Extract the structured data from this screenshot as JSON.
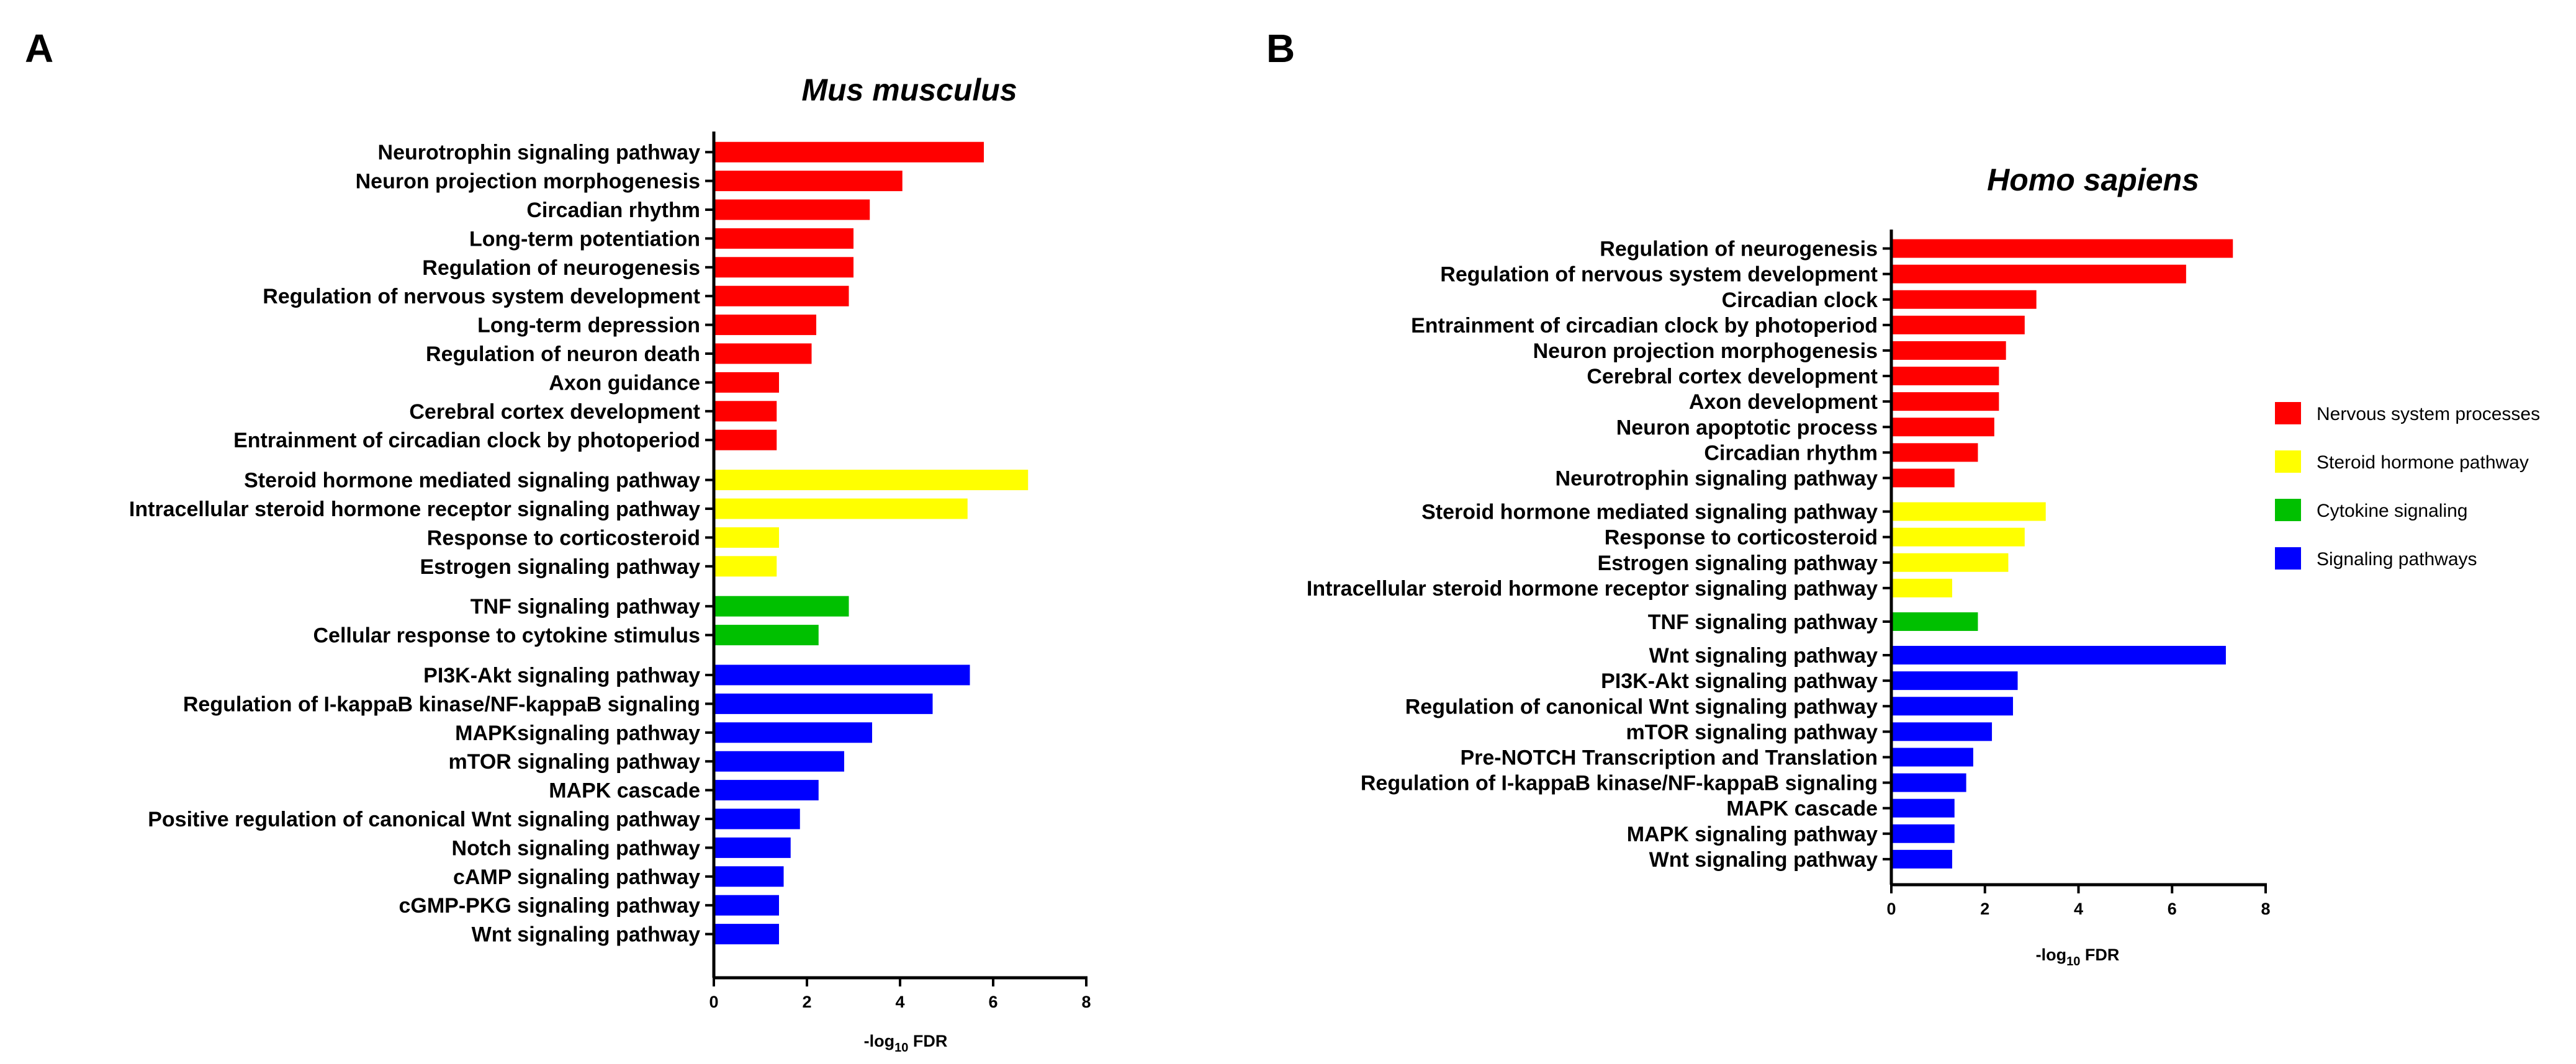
{
  "legend": [
    {
      "key": "nervous",
      "label": "Nervous system processes",
      "color": "#ff0000"
    },
    {
      "key": "steroid",
      "label": "Steroid hormone pathway",
      "color": "#ffff00"
    },
    {
      "key": "cytokine",
      "label": "Cytokine signaling",
      "color": "#00c000"
    },
    {
      "key": "signaling",
      "label": "Signaling pathways",
      "color": "#0000ff"
    }
  ],
  "chart_data": [
    {
      "panel": "A",
      "type": "bar",
      "orientation": "horizontal",
      "title": "Mus musculus",
      "xlabel_prefix": "-log",
      "xlabel_sub": "10",
      "xlabel_suffix": " FDR",
      "xlim": [
        0,
        8
      ],
      "xticks": [
        0,
        2,
        4,
        6,
        8
      ],
      "groups": [
        {
          "key": "nervous",
          "items": [
            {
              "label": "Neurotrophin signaling pathway",
              "value": 5.8
            },
            {
              "label": "Neuron projection morphogenesis",
              "value": 4.05
            },
            {
              "label": "Circadian rhythm",
              "value": 3.35
            },
            {
              "label": "Long-term potentiation",
              "value": 3.0
            },
            {
              "label": "Regulation of neurogenesis",
              "value": 3.0
            },
            {
              "label": "Regulation of nervous system development",
              "value": 2.9
            },
            {
              "label": "Long-term depression",
              "value": 2.2
            },
            {
              "label": "Regulation of neuron death",
              "value": 2.1
            },
            {
              "label": "Axon guidance",
              "value": 1.4
            },
            {
              "label": "Cerebral cortex development",
              "value": 1.35
            },
            {
              "label": "Entrainment of circadian clock by photoperiod",
              "value": 1.35
            }
          ]
        },
        {
          "key": "steroid",
          "items": [
            {
              "label": "Steroid hormone mediated signaling pathway",
              "value": 6.75
            },
            {
              "label": "Intracellular steroid hormone receptor signaling pathway",
              "value": 5.45
            },
            {
              "label": "Response to corticosteroid",
              "value": 1.4
            },
            {
              "label": "Estrogen signaling pathway",
              "value": 1.35
            }
          ]
        },
        {
          "key": "cytokine",
          "items": [
            {
              "label": "TNF signaling pathway",
              "value": 2.9
            },
            {
              "label": "Cellular response to cytokine stimulus",
              "value": 2.25
            }
          ]
        },
        {
          "key": "signaling",
          "items": [
            {
              "label": "PI3K-Akt signaling pathway",
              "value": 5.5
            },
            {
              "label": "Regulation of I-kappaB kinase/NF-kappaB signaling",
              "value": 4.7
            },
            {
              "label": "MAPKsignaling pathway",
              "value": 3.4
            },
            {
              "label": "mTOR signaling pathway",
              "value": 2.8
            },
            {
              "label": "MAPK cascade",
              "value": 2.25
            },
            {
              "label": "Positive regulation of canonical Wnt signaling pathway",
              "value": 1.85
            },
            {
              "label": "Notch signaling pathway",
              "value": 1.65
            },
            {
              "label": "cAMP signaling pathway",
              "value": 1.5
            },
            {
              "label": "cGMP-PKG signaling pathway",
              "value": 1.4
            },
            {
              "label": "Wnt signaling pathway",
              "value": 1.4
            }
          ]
        }
      ]
    },
    {
      "panel": "B",
      "type": "bar",
      "orientation": "horizontal",
      "title": "Homo sapiens",
      "xlabel_prefix": "-log",
      "xlabel_sub": "10",
      "xlabel_suffix": " FDR",
      "xlim": [
        0,
        8
      ],
      "xticks": [
        0,
        2,
        4,
        6,
        8
      ],
      "groups": [
        {
          "key": "nervous",
          "items": [
            {
              "label": "Regulation of neurogenesis",
              "value": 7.3
            },
            {
              "label": "Regulation of nervous system development",
              "value": 6.3
            },
            {
              "label": "Circadian clock",
              "value": 3.1
            },
            {
              "label": "Entrainment of circadian clock by photoperiod",
              "value": 2.85
            },
            {
              "label": "Neuron projection morphogenesis",
              "value": 2.45
            },
            {
              "label": "Cerebral cortex development",
              "value": 2.3
            },
            {
              "label": "Axon development",
              "value": 2.3
            },
            {
              "label": "Neuron apoptotic process",
              "value": 2.2
            },
            {
              "label": "Circadian rhythm",
              "value": 1.85
            },
            {
              "label": "Neurotrophin signaling pathway",
              "value": 1.35
            }
          ]
        },
        {
          "key": "steroid",
          "items": [
            {
              "label": "Steroid hormone mediated signaling pathway",
              "value": 3.3
            },
            {
              "label": "Response to corticosteroid",
              "value": 2.85
            },
            {
              "label": "Estrogen signaling pathway",
              "value": 2.5
            },
            {
              "label": "Intracellular steroid hormone receptor signaling pathway",
              "value": 1.3
            }
          ]
        },
        {
          "key": "cytokine",
          "items": [
            {
              "label": "TNF signaling pathway",
              "value": 1.85
            }
          ]
        },
        {
          "key": "signaling",
          "items": [
            {
              "label": "Wnt signaling pathway",
              "value": 7.15
            },
            {
              "label": "PI3K-Akt signaling pathway",
              "value": 2.7
            },
            {
              "label": "Regulation of canonical Wnt signaling pathway",
              "value": 2.6
            },
            {
              "label": "mTOR signaling pathway",
              "value": 2.15
            },
            {
              "label": "Pre-NOTCH Transcription and Translation",
              "value": 1.75
            },
            {
              "label": "Regulation of I-kappaB kinase/NF-kappaB signaling",
              "value": 1.6
            },
            {
              "label": "MAPK cascade",
              "value": 1.35
            },
            {
              "label": "MAPK signaling pathway",
              "value": 1.35
            },
            {
              "label": "Wnt signaling pathway",
              "value": 1.3
            }
          ]
        }
      ]
    }
  ]
}
